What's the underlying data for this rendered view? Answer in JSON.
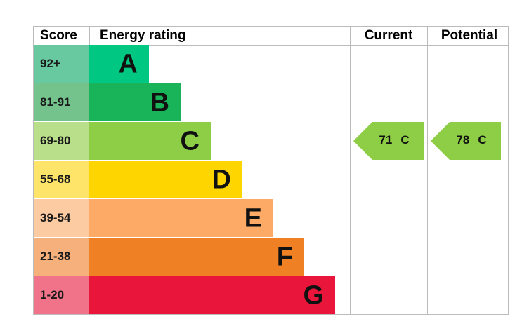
{
  "header": {
    "score": "Score",
    "rating": "Energy rating",
    "current": "Current",
    "potential": "Potential"
  },
  "bands": [
    {
      "score": "92+",
      "letter": "A",
      "color": "#00c781",
      "score_color": "#68c9a0"
    },
    {
      "score": "81-91",
      "letter": "B",
      "color": "#19b459",
      "score_color": "#75c38c"
    },
    {
      "score": "69-80",
      "letter": "C",
      "color": "#8dce46",
      "score_color": "#badf8b"
    },
    {
      "score": "55-68",
      "letter": "D",
      "color": "#ffd500",
      "score_color": "#ffe46a"
    },
    {
      "score": "39-54",
      "letter": "E",
      "color": "#fcaa65",
      "score_color": "#fdcba2"
    },
    {
      "score": "21-38",
      "letter": "F",
      "color": "#ef8023",
      "score_color": "#f5b07b"
    },
    {
      "score": "1-20",
      "letter": "G",
      "color": "#e9153b",
      "score_color": "#f07389"
    }
  ],
  "current": {
    "value": 71,
    "letter": "C"
  },
  "potential": {
    "value": 78,
    "letter": "C"
  }
}
